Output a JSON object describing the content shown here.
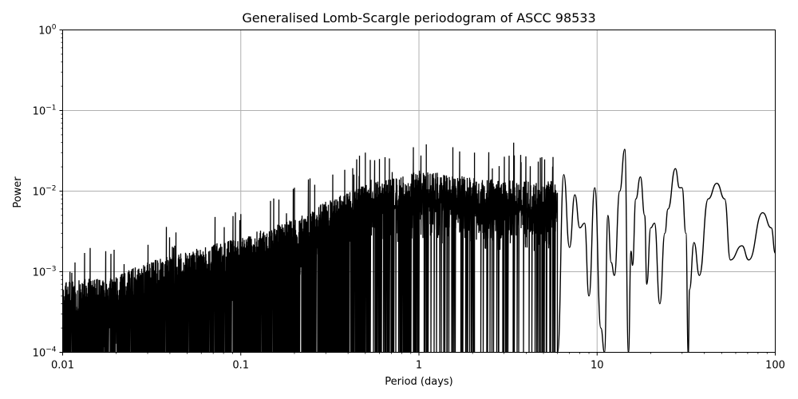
{
  "chart_data": {
    "type": "line",
    "title": "Generalised Lomb-Scargle periodogram of ASCC 98533",
    "xlabel": "Period (days)",
    "ylabel": "Power",
    "xscale": "log",
    "yscale": "log",
    "xlim": [
      0.01,
      100
    ],
    "ylim": [
      0.0001,
      1
    ],
    "x_tick_labels": [
      "0.01",
      "0.1",
      "1",
      "10",
      "100"
    ],
    "x_ticks": [
      0.01,
      0.1,
      1,
      10,
      100
    ],
    "y_tick_labels": [
      {
        "base": "10",
        "exp": "0"
      },
      {
        "base": "10",
        "exp": "−1"
      },
      {
        "base": "10",
        "exp": "−2"
      },
      {
        "base": "10",
        "exp": "−3"
      },
      {
        "base": "10",
        "exp": "−4"
      }
    ],
    "y_ticks": [
      1,
      0.1,
      0.01,
      0.001,
      0.0001
    ],
    "grid": true,
    "legend": null,
    "line_color": "#000000",
    "grid_color": "#b0b0b0",
    "notable_peaks": [
      {
        "period": 0.011,
        "power": 0.001
      },
      {
        "period": 0.03,
        "power": 0.0013
      },
      {
        "period": 0.1,
        "power": 0.0052
      },
      {
        "period": 0.2,
        "power": 0.011
      },
      {
        "period": 0.26,
        "power": 0.012
      },
      {
        "period": 0.5,
        "power": 0.03
      },
      {
        "period": 0.6,
        "power": 0.025
      },
      {
        "period": 0.93,
        "power": 0.035
      },
      {
        "period": 1.1,
        "power": 0.038
      },
      {
        "period": 1.55,
        "power": 0.035
      },
      {
        "period": 2.05,
        "power": 0.03
      },
      {
        "period": 3.4,
        "power": 0.04
      },
      {
        "period": 4.8,
        "power": 0.026
      },
      {
        "period": 6.5,
        "power": 0.016
      },
      {
        "period": 9.7,
        "power": 0.011
      },
      {
        "period": 14.3,
        "power": 0.033
      },
      {
        "period": 17.5,
        "power": 0.015
      },
      {
        "period": 21.0,
        "power": 0.004
      },
      {
        "period": 27.5,
        "power": 0.019
      },
      {
        "period": 35.0,
        "power": 0.0023
      },
      {
        "period": 47.0,
        "power": 0.0125
      },
      {
        "period": 65.0,
        "power": 0.0021
      },
      {
        "period": 85.0,
        "power": 0.0054
      },
      {
        "period": 100.0,
        "power": 0.0017
      }
    ],
    "envelope": {
      "description": "dense noisy periodogram; floor fills to bottom for P<0.5d, oscillating curve for P>1d",
      "upper_points": [
        [
          0.01,
          0.0005
        ],
        [
          0.02,
          0.0006
        ],
        [
          0.03,
          0.0009
        ],
        [
          0.05,
          0.0012
        ],
        [
          0.1,
          0.0018
        ],
        [
          0.2,
          0.003
        ],
        [
          0.3,
          0.005
        ],
        [
          0.5,
          0.008
        ],
        [
          1,
          0.012
        ],
        [
          2,
          0.01
        ],
        [
          3,
          0.009
        ]
      ]
    },
    "smooth_segment": [
      [
        6.0,
        0.0001
      ],
      [
        6.5,
        0.016
      ],
      [
        7.0,
        0.002
      ],
      [
        7.5,
        0.009
      ],
      [
        8.0,
        0.0035
      ],
      [
        8.5,
        0.004
      ],
      [
        9.0,
        0.0005
      ],
      [
        9.7,
        0.011
      ],
      [
        10.5,
        0.0002
      ],
      [
        11.0,
        0.0001
      ],
      [
        11.5,
        0.005
      ],
      [
        12.0,
        0.0013
      ],
      [
        12.5,
        0.0009
      ],
      [
        13.4,
        0.01
      ],
      [
        14.3,
        0.033
      ],
      [
        15.0,
        0.0001
      ],
      [
        15.5,
        0.0018
      ],
      [
        15.8,
        0.0012
      ],
      [
        16.5,
        0.008
      ],
      [
        17.5,
        0.015
      ],
      [
        18.5,
        0.005
      ],
      [
        19.0,
        0.0007
      ],
      [
        20.0,
        0.0035
      ],
      [
        21.0,
        0.004
      ],
      [
        22.5,
        0.0004
      ],
      [
        24.0,
        0.003
      ],
      [
        25.0,
        0.006
      ],
      [
        27.5,
        0.019
      ],
      [
        29.0,
        0.011
      ],
      [
        30.0,
        0.011
      ],
      [
        31.5,
        0.003
      ],
      [
        32.5,
        5e-05
      ],
      [
        33.0,
        0.0006
      ],
      [
        35.0,
        0.0023
      ],
      [
        37.5,
        0.0009
      ],
      [
        42.0,
        0.008
      ],
      [
        47.0,
        0.0125
      ],
      [
        52.0,
        0.008
      ],
      [
        56.0,
        0.0014
      ],
      [
        65.0,
        0.0021
      ],
      [
        71.0,
        0.0014
      ],
      [
        85.0,
        0.0054
      ],
      [
        95.0,
        0.0035
      ],
      [
        100.0,
        0.0017
      ]
    ]
  }
}
